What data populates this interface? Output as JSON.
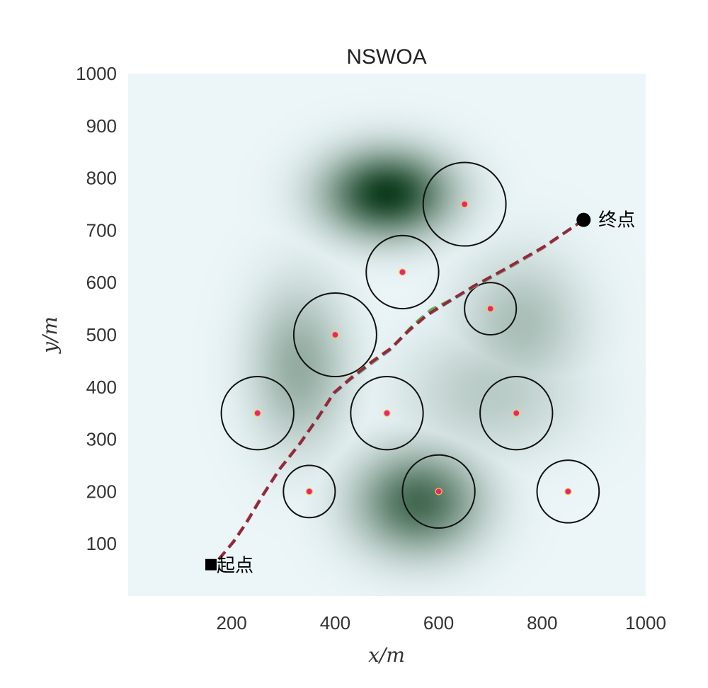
{
  "chart_data": {
    "type": "scatter",
    "title": "NSWOA",
    "xlabel": "x/m",
    "ylabel": "y/m",
    "xlim": [
      0,
      1000
    ],
    "ylim": [
      0,
      1000
    ],
    "xticks": [
      200,
      400,
      600,
      800,
      1000
    ],
    "yticks": [
      100,
      200,
      300,
      400,
      500,
      600,
      700,
      800,
      900,
      1000
    ],
    "grid": false,
    "background": {
      "type": "terrain-heatmap",
      "colormap": [
        "#ecf6f9",
        "#0f3d1e"
      ],
      "peaks": [
        {
          "x": 500,
          "y": 770,
          "amp": 1.0,
          "sx": 110,
          "sy": 75
        },
        {
          "x": 560,
          "y": 180,
          "amp": 0.72,
          "sx": 110,
          "sy": 90
        },
        {
          "x": 330,
          "y": 440,
          "amp": 0.34,
          "sx": 85,
          "sy": 140
        },
        {
          "x": 760,
          "y": 520,
          "amp": 0.24,
          "sx": 110,
          "sy": 120
        },
        {
          "x": 700,
          "y": 390,
          "amp": 0.18,
          "sx": 150,
          "sy": 110
        }
      ]
    },
    "obstacles": [
      {
        "x": 650,
        "y": 750,
        "r": 80
      },
      {
        "x": 530,
        "y": 620,
        "r": 70
      },
      {
        "x": 700,
        "y": 550,
        "r": 50
      },
      {
        "x": 400,
        "y": 500,
        "r": 80
      },
      {
        "x": 250,
        "y": 350,
        "r": 70
      },
      {
        "x": 500,
        "y": 350,
        "r": 70
      },
      {
        "x": 750,
        "y": 350,
        "r": 70
      },
      {
        "x": 350,
        "y": 200,
        "r": 50
      },
      {
        "x": 600,
        "y": 200,
        "r": 70
      },
      {
        "x": 850,
        "y": 200,
        "r": 60
      }
    ],
    "start": {
      "x": 160,
      "y": 60,
      "label": "起点"
    },
    "goal": {
      "x": 880,
      "y": 720,
      "label": "终点"
    },
    "series": [
      {
        "color": "#5b9bd5",
        "values": [
          [
            175,
            70
          ],
          [
            200,
            100
          ],
          [
            225,
            135
          ],
          [
            255,
            185
          ],
          [
            290,
            240
          ],
          [
            330,
            290
          ],
          [
            365,
            340
          ],
          [
            395,
            385
          ],
          [
            430,
            415
          ],
          [
            470,
            445
          ],
          [
            505,
            470
          ],
          [
            540,
            505
          ],
          [
            575,
            535
          ],
          [
            615,
            560
          ],
          [
            665,
            590
          ],
          [
            730,
            625
          ],
          [
            800,
            665
          ],
          [
            880,
            720
          ]
        ]
      },
      {
        "color": "#d9a441",
        "values": [
          [
            175,
            70
          ],
          [
            205,
            105
          ],
          [
            228,
            140
          ],
          [
            258,
            190
          ],
          [
            292,
            242
          ],
          [
            332,
            292
          ],
          [
            368,
            343
          ],
          [
            398,
            390
          ],
          [
            433,
            420
          ],
          [
            472,
            450
          ],
          [
            508,
            475
          ],
          [
            545,
            512
          ],
          [
            580,
            540
          ],
          [
            618,
            563
          ],
          [
            667,
            592
          ],
          [
            732,
            628
          ],
          [
            802,
            667
          ],
          [
            880,
            720
          ]
        ]
      },
      {
        "color": "#6aa84f",
        "values": [
          [
            175,
            70
          ],
          [
            202,
            102
          ],
          [
            226,
            137
          ],
          [
            256,
            187
          ],
          [
            291,
            241
          ],
          [
            331,
            291
          ],
          [
            366,
            341
          ],
          [
            396,
            387
          ],
          [
            431,
            417
          ],
          [
            471,
            447
          ],
          [
            506,
            472
          ],
          [
            552,
            520
          ],
          [
            585,
            548
          ],
          [
            622,
            566
          ],
          [
            666,
            591
          ],
          [
            731,
            626
          ],
          [
            801,
            666
          ],
          [
            880,
            720
          ]
        ]
      },
      {
        "color": "#e06666",
        "values": [
          [
            175,
            70
          ],
          [
            203,
            104
          ],
          [
            227,
            139
          ],
          [
            257,
            189
          ],
          [
            292,
            243
          ],
          [
            332,
            293
          ],
          [
            367,
            342
          ],
          [
            397,
            389
          ],
          [
            432,
            419
          ],
          [
            471,
            448
          ],
          [
            507,
            473
          ],
          [
            543,
            508
          ],
          [
            578,
            538
          ],
          [
            617,
            562
          ],
          [
            666,
            592
          ],
          [
            731,
            627
          ],
          [
            801,
            666
          ],
          [
            880,
            720
          ]
        ]
      },
      {
        "color": "#8e2a3c",
        "values": [
          [
            175,
            70
          ],
          [
            204,
            104
          ],
          [
            228,
            139
          ],
          [
            258,
            189
          ],
          [
            293,
            243
          ],
          [
            333,
            293
          ],
          [
            368,
            343
          ],
          [
            398,
            389
          ],
          [
            433,
            419
          ],
          [
            472,
            449
          ],
          [
            508,
            474
          ],
          [
            544,
            510
          ],
          [
            579,
            539
          ],
          [
            618,
            563
          ],
          [
            667,
            593
          ],
          [
            732,
            628
          ],
          [
            802,
            668
          ],
          [
            880,
            720
          ]
        ]
      }
    ]
  }
}
